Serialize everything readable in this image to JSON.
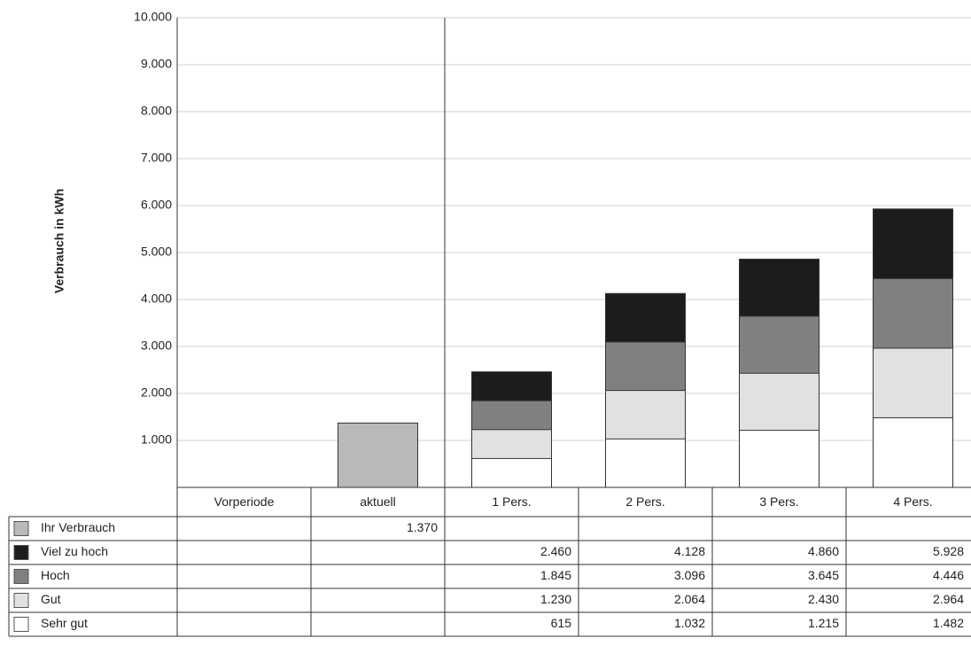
{
  "chart_data": {
    "type": "bar",
    "y_label": "Verbrauch in kWh",
    "categories": [
      "Vorperiode",
      "aktuell",
      "1 Pers.",
      "2 Pers.",
      "3 Pers.",
      "4 Pers."
    ],
    "series": [
      {
        "name": "Ihr Verbrauch",
        "color": "#b9b9b9",
        "values": [
          null,
          1370,
          null,
          null,
          null,
          null
        ],
        "value_labels": [
          null,
          "1.370",
          null,
          null,
          null,
          null
        ]
      },
      {
        "name": "Viel zu hoch",
        "color": "#1c1c1c",
        "values": [
          null,
          null,
          2460,
          4128,
          4860,
          5928
        ],
        "value_labels": [
          null,
          null,
          "2.460",
          "4.128",
          "4.860",
          "5.928"
        ]
      },
      {
        "name": "Hoch",
        "color": "#808080",
        "values": [
          null,
          null,
          1845,
          3096,
          3645,
          4446
        ],
        "value_labels": [
          null,
          null,
          "1.845",
          "3.096",
          "3.645",
          "4.446"
        ]
      },
      {
        "name": "Gut",
        "color": "#e1e1e1",
        "values": [
          null,
          null,
          1230,
          2064,
          2430,
          2964
        ],
        "value_labels": [
          null,
          null,
          "1.230",
          "2.064",
          "2.430",
          "2.964"
        ]
      },
      {
        "name": "Sehr gut",
        "color": "#ffffff",
        "values": [
          null,
          null,
          615,
          1032,
          1215,
          1482
        ],
        "value_labels": [
          null,
          null,
          "615",
          "1.032",
          "1.215",
          "1.482"
        ]
      }
    ],
    "ylim": [
      0,
      10000
    ],
    "yticks": [
      {
        "value": 1000,
        "label": "1.000"
      },
      {
        "value": 2000,
        "label": "2.000"
      },
      {
        "value": 3000,
        "label": "3.000"
      },
      {
        "value": 4000,
        "label": "4.000"
      },
      {
        "value": 5000,
        "label": "5.000"
      },
      {
        "value": 6000,
        "label": "6.000"
      },
      {
        "value": 7000,
        "label": "7.000"
      },
      {
        "value": 8000,
        "label": "8.000"
      },
      {
        "value": 9000,
        "label": "9.000"
      },
      {
        "value": 10000,
        "label": "10.000"
      }
    ],
    "grid": true
  }
}
